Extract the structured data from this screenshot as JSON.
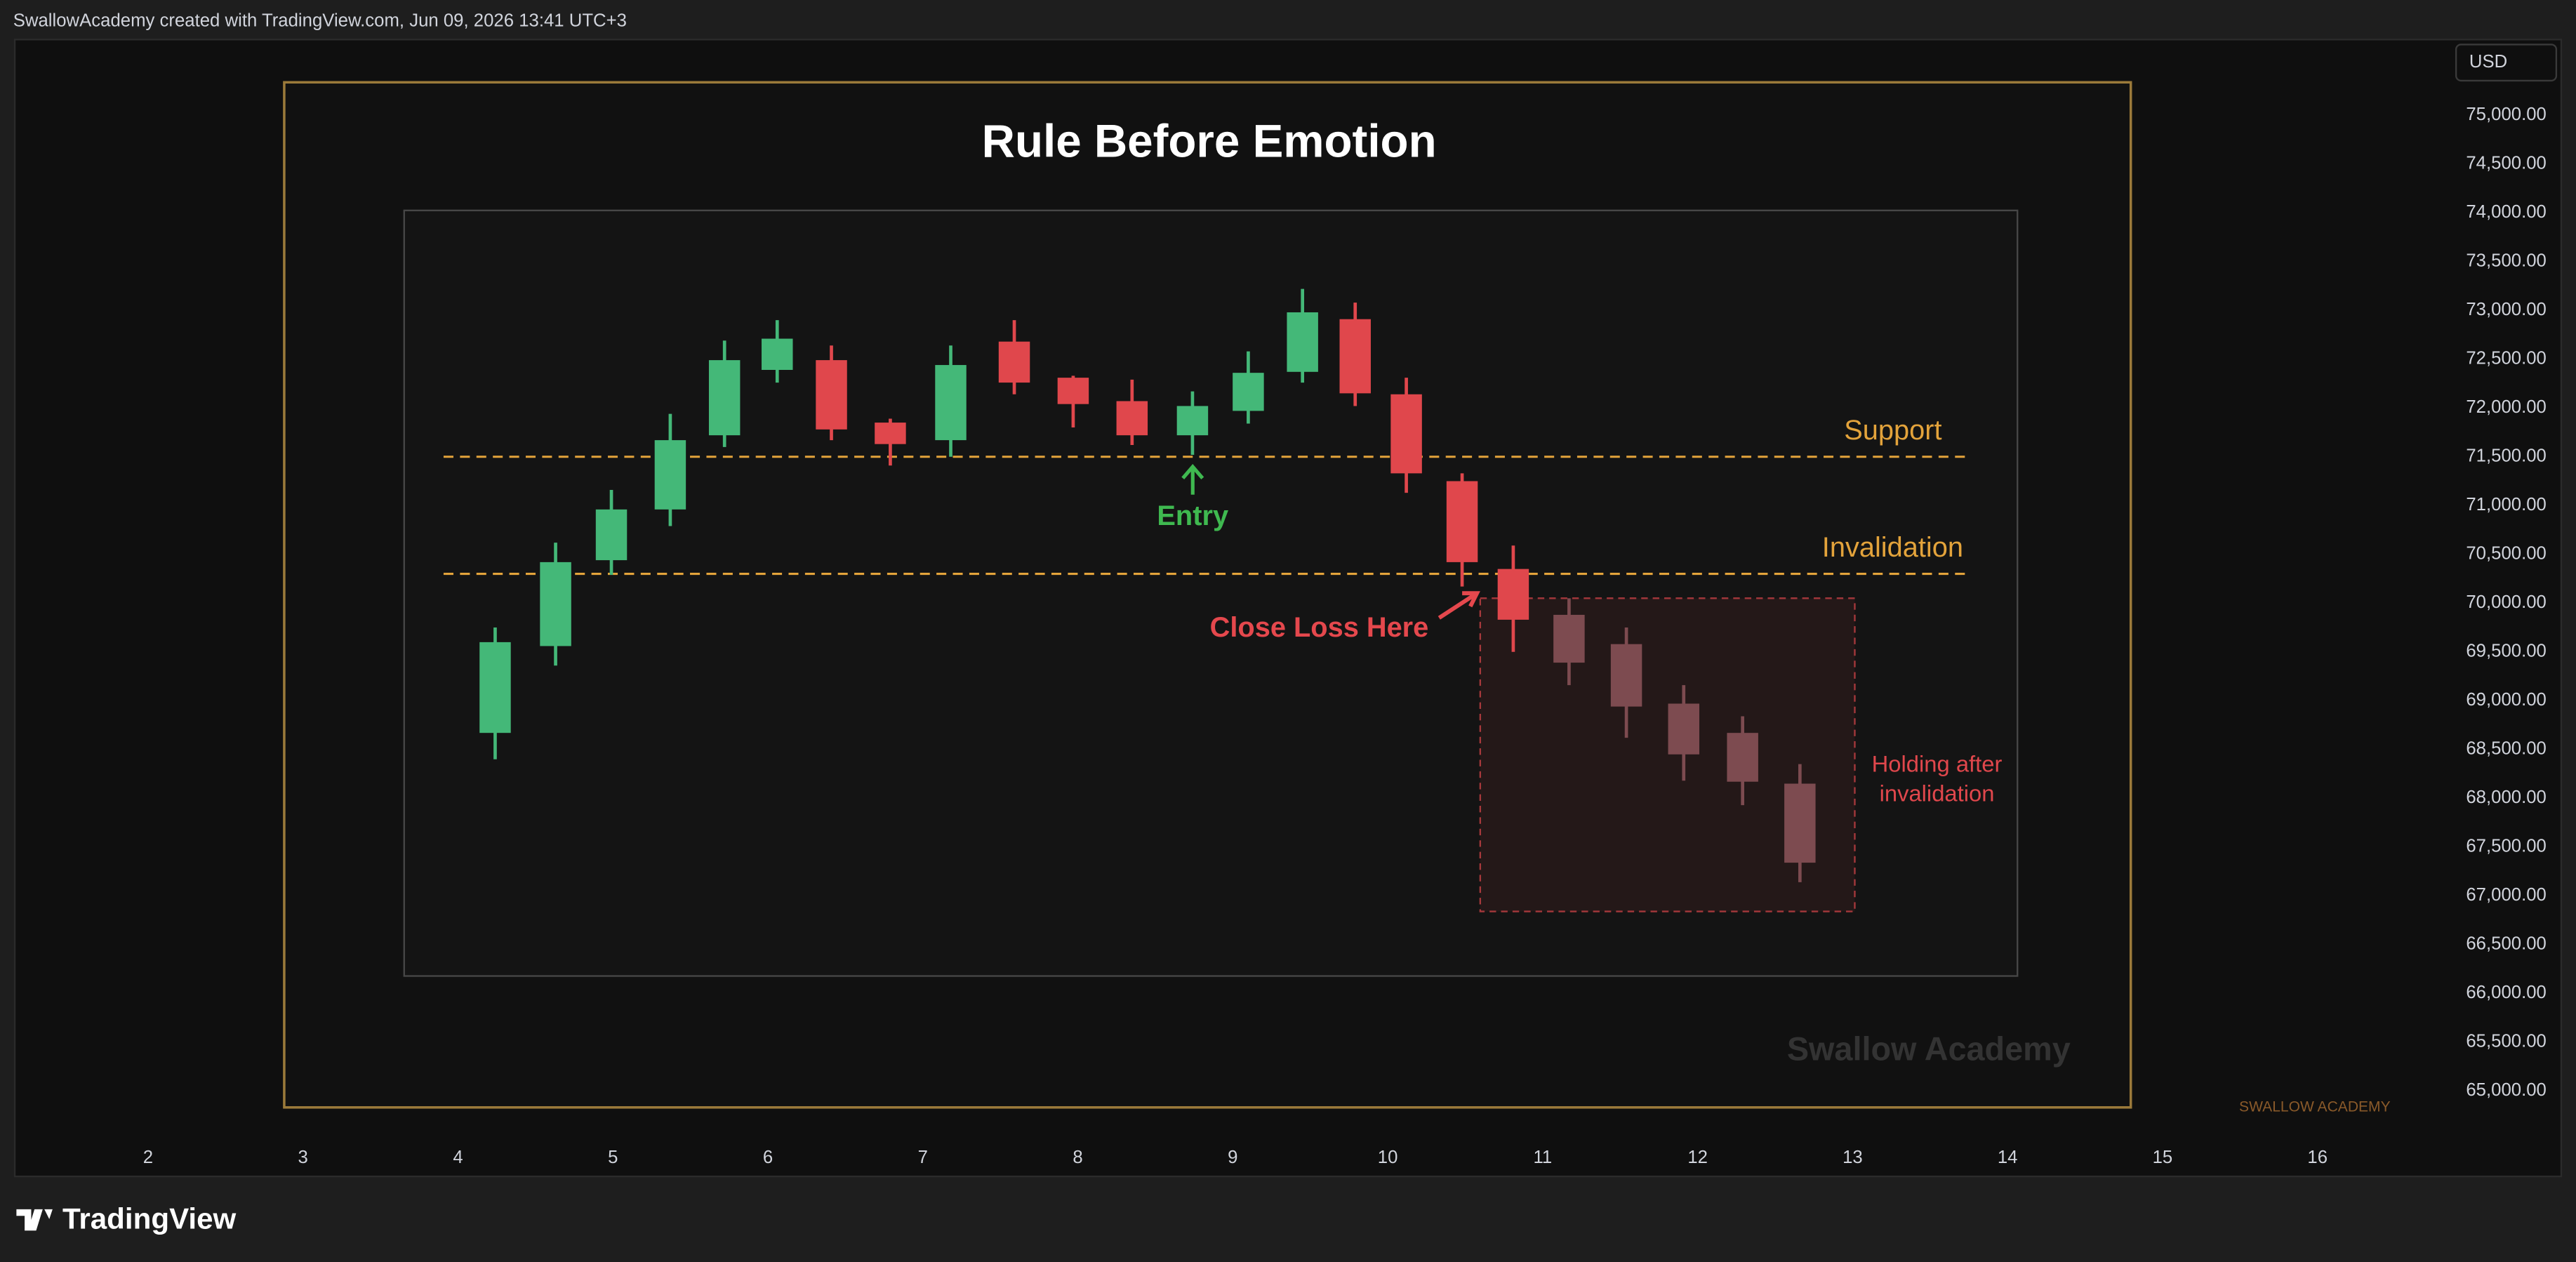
{
  "header": {
    "attribution": "SwallowAcademy created with TradingView.com, Jun 09, 2026 13:41 UTC+3"
  },
  "footer": {
    "brand": "TradingView"
  },
  "chart_data": {
    "type": "candlestick",
    "title": "Rule Before Emotion",
    "currency": "USD",
    "x": [
      4.24,
      4.63,
      4.99,
      5.37,
      5.72,
      6.06,
      6.41,
      6.79,
      7.18,
      7.59,
      7.97,
      8.35,
      8.74,
      9.1,
      9.45,
      9.79,
      10.12,
      10.48,
      10.81,
      11.17,
      11.54,
      11.91,
      12.29,
      12.66
    ],
    "open": [
      68670,
      69560,
      70440,
      70960,
      71720,
      72390,
      72490,
      71850,
      71670,
      72680,
      72310,
      72070,
      71720,
      71970,
      72370,
      72910,
      72140,
      71250,
      70350,
      69880,
      69580,
      68970,
      68670,
      68150
    ],
    "high": [
      69750,
      70620,
      71160,
      71940,
      72690,
      72900,
      72640,
      71890,
      72640,
      72900,
      72330,
      72290,
      72170,
      72580,
      73220,
      73080,
      72310,
      71330,
      70590,
      70050,
      69750,
      69160,
      68840,
      68350
    ],
    "low": [
      68400,
      69360,
      70290,
      70790,
      71600,
      72260,
      71670,
      71410,
      71500,
      72140,
      71800,
      71620,
      71520,
      71840,
      72260,
      72020,
      71130,
      70170,
      69500,
      69160,
      68620,
      68180,
      67930,
      67140
    ],
    "close": [
      69600,
      70420,
      70960,
      71670,
      72490,
      72710,
      71780,
      71630,
      72440,
      72260,
      72040,
      71720,
      72020,
      72360,
      72980,
      72150,
      71330,
      70420,
      69830,
      69390,
      68940,
      68450,
      68170,
      67340
    ],
    "colors": [
      "#44b878",
      "#44b878",
      "#44b878",
      "#44b878",
      "#44b878",
      "#44b878",
      "#e0474c",
      "#e0474c",
      "#44b878",
      "#e0474c",
      "#e0474c",
      "#e0474c",
      "#44b878",
      "#44b878",
      "#44b878",
      "#e0474c",
      "#e0474c",
      "#e0474c",
      "#e0474c",
      "#7d4b50",
      "#7d4b50",
      "#7d4b50",
      "#7d4b50",
      "#7d4b50"
    ],
    "xlim": [
      1.14,
      16.82
    ],
    "xticks": [
      2,
      3,
      4,
      5,
      6,
      7,
      8,
      9,
      10,
      11,
      12,
      13,
      14,
      15,
      16
    ],
    "ylim": [
      64125,
      75775
    ],
    "yticks": [
      {
        "value": 65000,
        "label": "65,000.00"
      },
      {
        "value": 65500,
        "label": "65,500.00"
      },
      {
        "value": 66000,
        "label": "66,000.00"
      },
      {
        "value": 66500,
        "label": "66,500.00"
      },
      {
        "value": 67000,
        "label": "67,000.00"
      },
      {
        "value": 67500,
        "label": "67,500.00"
      },
      {
        "value": 68000,
        "label": "68,000.00"
      },
      {
        "value": 68500,
        "label": "68,500.00"
      },
      {
        "value": 69000,
        "label": "69,000.00"
      },
      {
        "value": 69500,
        "label": "69,500.00"
      },
      {
        "value": 70000,
        "label": "70,000.00"
      },
      {
        "value": 70500,
        "label": "70,500.00"
      },
      {
        "value": 71000,
        "label": "71,000.00"
      },
      {
        "value": 71500,
        "label": "71,500.00"
      },
      {
        "value": 72000,
        "label": "72,000.00"
      },
      {
        "value": 72500,
        "label": "72,500.00"
      },
      {
        "value": 73000,
        "label": "73,000.00"
      },
      {
        "value": 73500,
        "label": "73,500.00"
      },
      {
        "value": 74000,
        "label": "74,000.00"
      },
      {
        "value": 74500,
        "label": "74,500.00"
      },
      {
        "value": 75000,
        "label": "75,000.00"
      }
    ],
    "levels": [
      {
        "label": "Support",
        "value": 71500,
        "color": "#e3a33b"
      },
      {
        "label": "Invalidation",
        "value": 70300,
        "color": "#e3a33b"
      }
    ],
    "zone": {
      "label": [
        "Holding after",
        "invalidation"
      ],
      "top": 70050,
      "bottom": 66840,
      "color": "#e0474c"
    },
    "annotations": [
      {
        "text": "Entry",
        "color": "#3fb950"
      },
      {
        "text": "Close Loss Here",
        "color": "#e5484d"
      }
    ],
    "watermark": "Swallow Academy",
    "brand_mark": "SWALLOW ACADEMY"
  }
}
